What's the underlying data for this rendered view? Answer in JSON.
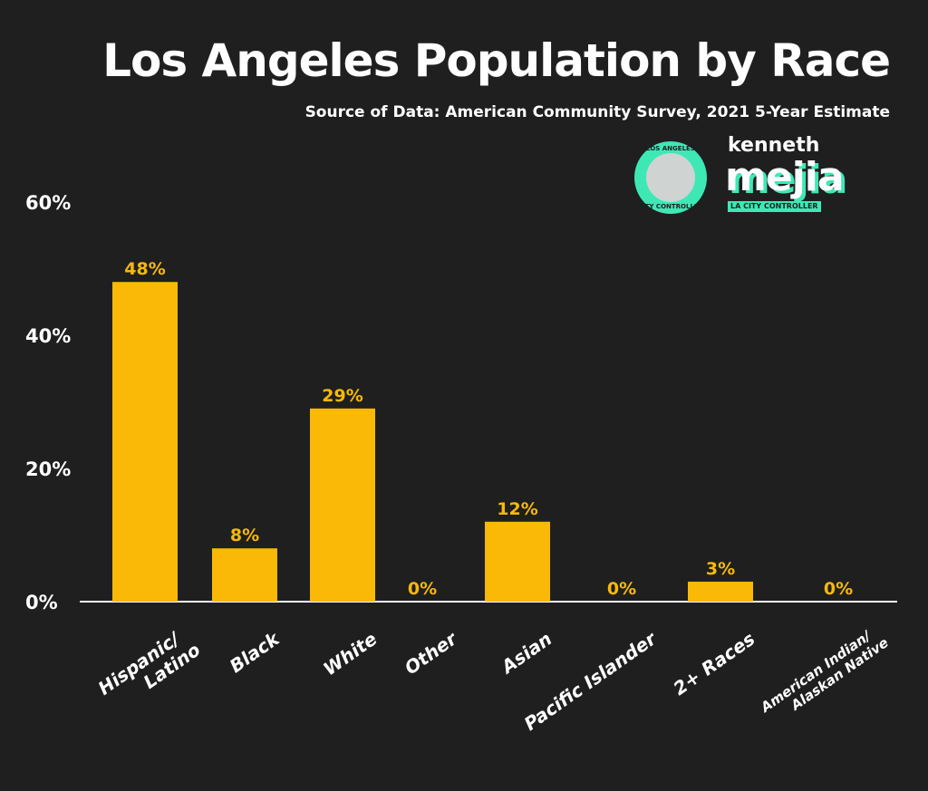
{
  "chart_data": {
    "type": "bar",
    "title": "Los Angeles Population by Race",
    "subtitle": "Source of Data: American Community Survey, 2021 5-Year Estimate",
    "categories": [
      "Hispanic/\nLatino",
      "Black",
      "White",
      "Other",
      "Asian",
      "Pacific Islander",
      "2+ Races",
      "American Indian/\nAlaskan Native"
    ],
    "values": [
      48,
      8,
      29,
      0,
      12,
      0,
      3,
      0
    ],
    "value_labels": [
      "48%",
      "8%",
      "29%",
      "0%",
      "12%",
      "0%",
      "3%",
      "0%"
    ],
    "xlabel": "",
    "ylabel": "",
    "ylim": [
      0,
      60
    ],
    "yticks": [
      0,
      20,
      40,
      60
    ],
    "ytick_labels": [
      "0%",
      "20%",
      "40%",
      "60%"
    ],
    "grid": false,
    "bar_color": "#f9b906",
    "background": "#1f1f1f"
  },
  "logo": {
    "seal_top": "LOS ANGELES",
    "seal_bottom": "CITY CONTROLLER",
    "name_first": "kenneth",
    "name_last": "mejia",
    "tagline": "LA CITY CONTROLLER",
    "accent": "#3ee8b5"
  }
}
